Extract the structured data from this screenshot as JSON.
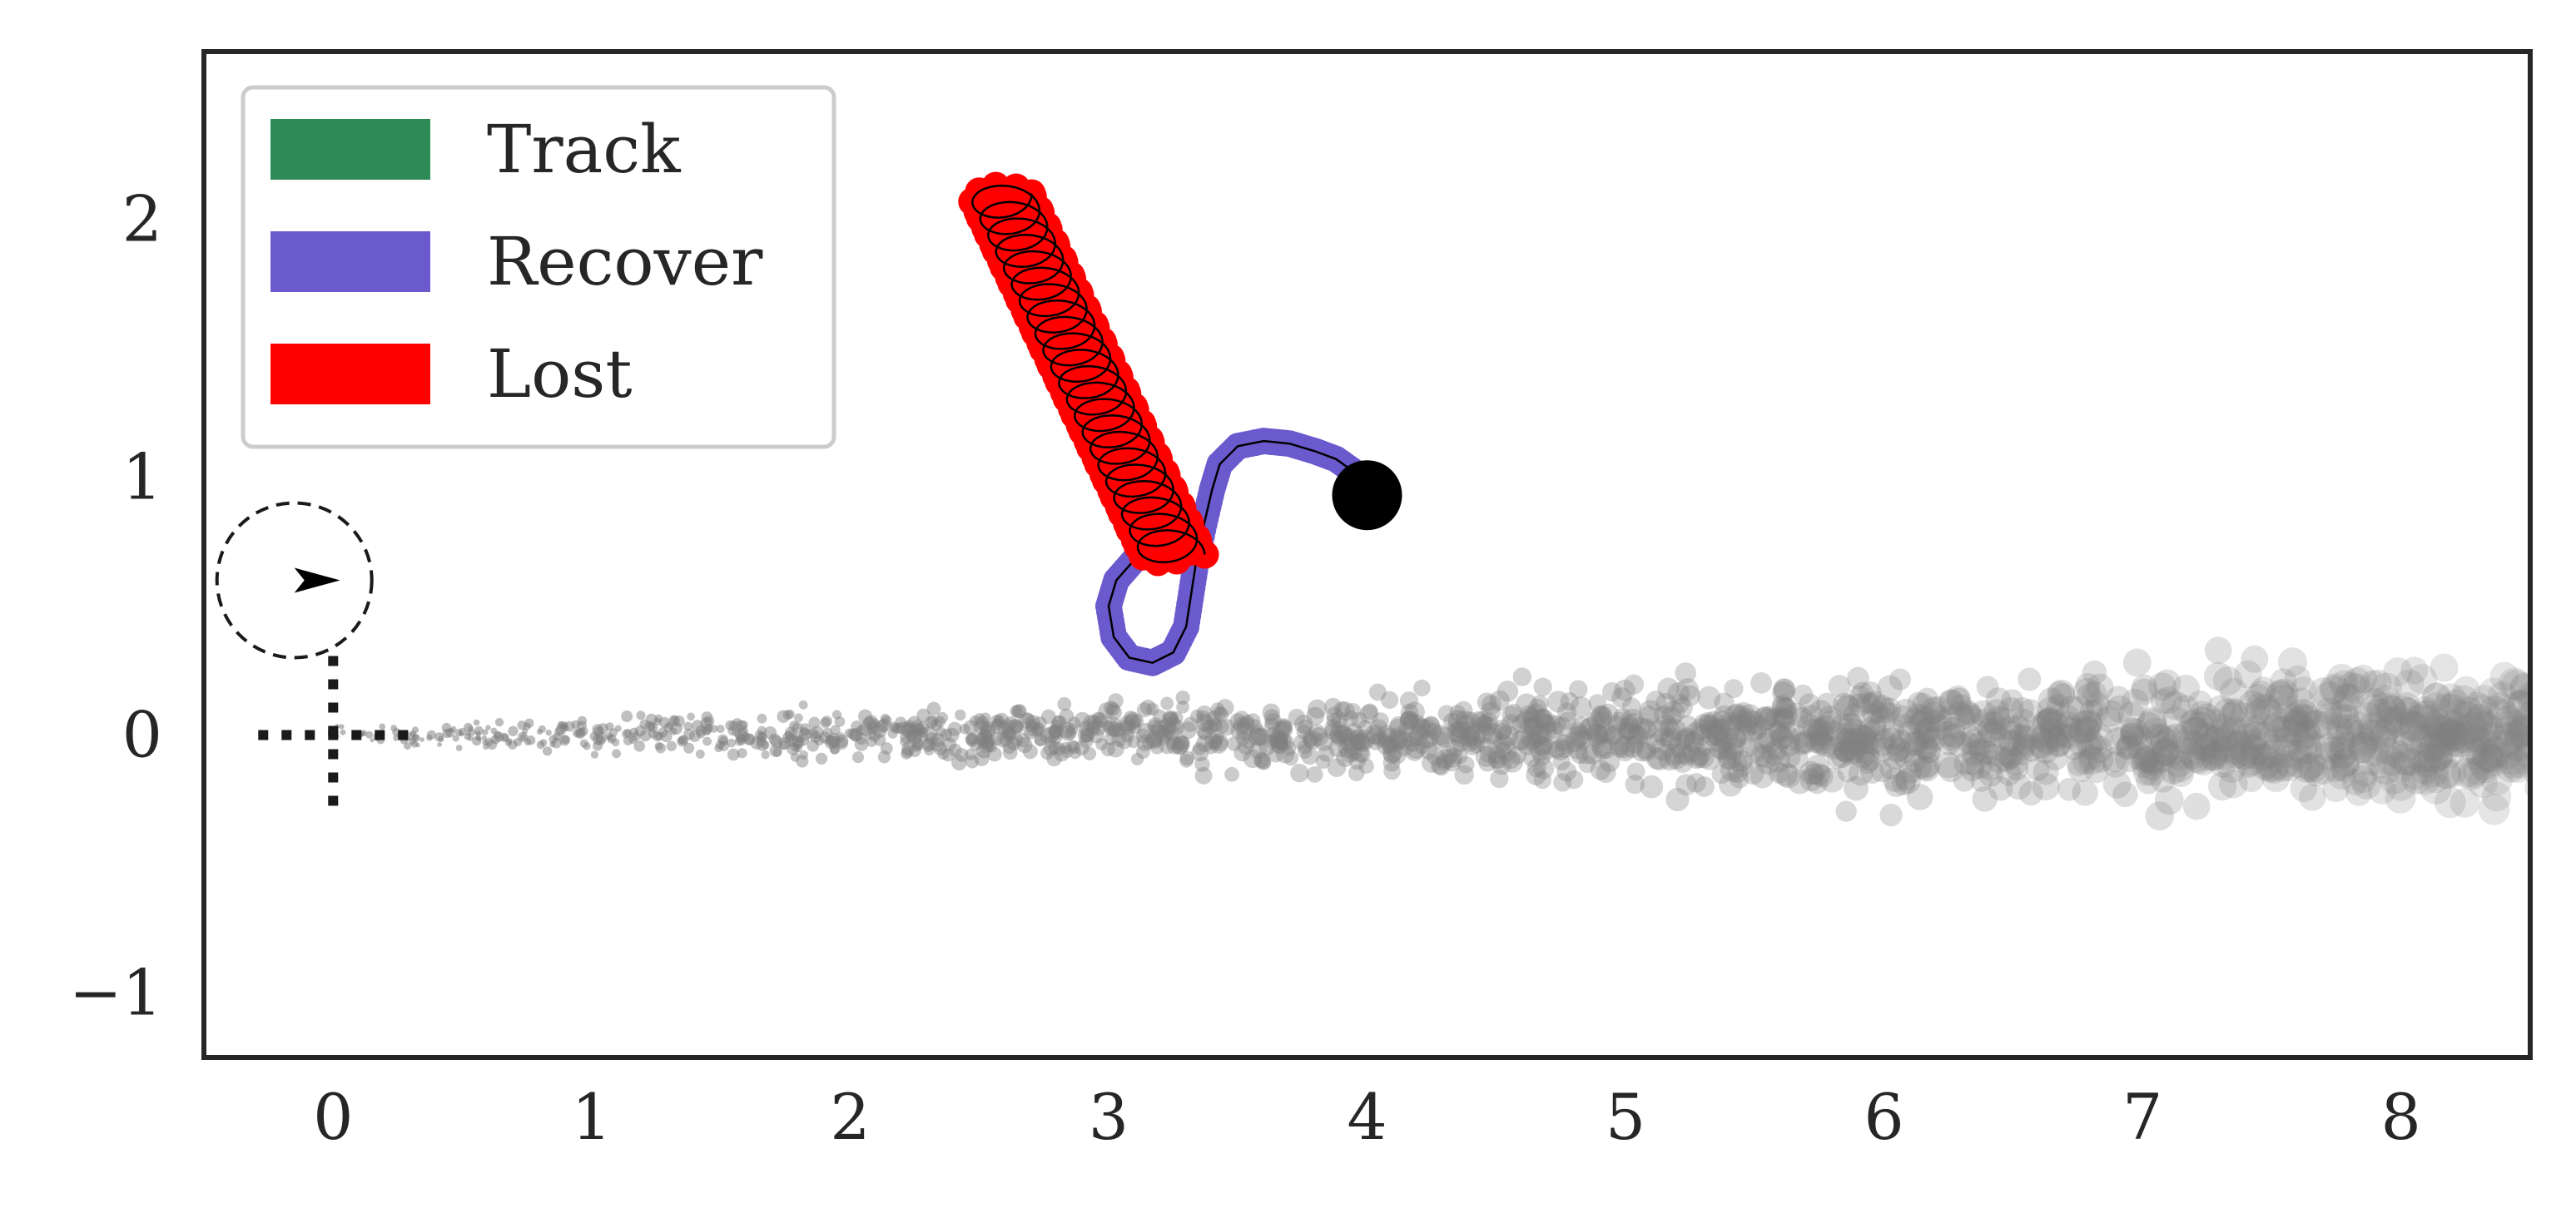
{
  "chart_data": {
    "type": "scatter",
    "title": "",
    "xlabel": "",
    "ylabel": "",
    "xlim": [
      -0.5,
      8.5
    ],
    "ylim": [
      -1.25,
      2.65
    ],
    "grid": false,
    "x_ticks": [
      0,
      1,
      2,
      3,
      4,
      5,
      6,
      7,
      8
    ],
    "y_ticks": [
      -1,
      0,
      1,
      2
    ],
    "x_tick_labels": [
      "0",
      "1",
      "2",
      "3",
      "4",
      "5",
      "6",
      "7",
      "8"
    ],
    "y_tick_labels": [
      "−1",
      "0",
      "1",
      "2"
    ],
    "legend": {
      "placement": "upper-left",
      "entries": [
        {
          "label": "Track",
          "color": "#2e8b57"
        },
        {
          "label": "Recover",
          "color": "#6a5acd"
        },
        {
          "label": "Lost",
          "color": "#ff0000"
        }
      ]
    },
    "colors": {
      "track": "#2e8b57",
      "recover": "#6a5acd",
      "lost": "#ff0000",
      "target": "#000000",
      "particles": "#808080",
      "frame": "#262626"
    },
    "target_point": {
      "x": 4.0,
      "y": 0.93
    },
    "sensor_origin": {
      "x": 0.0,
      "y": 0.0
    },
    "sensor_fov_circle": {
      "center_x": -0.15,
      "center_y": 0.6,
      "radius": 0.3
    },
    "recover_path": [
      [
        4.0,
        0.93
      ],
      [
        3.95,
        1.02
      ],
      [
        3.88,
        1.07
      ],
      [
        3.8,
        1.1
      ],
      [
        3.7,
        1.13
      ],
      [
        3.6,
        1.14
      ],
      [
        3.5,
        1.12
      ],
      [
        3.43,
        1.05
      ],
      [
        3.4,
        0.95
      ],
      [
        3.37,
        0.82
      ],
      [
        3.34,
        0.68
      ],
      [
        3.32,
        0.55
      ],
      [
        3.3,
        0.42
      ],
      [
        3.25,
        0.32
      ],
      [
        3.17,
        0.28
      ],
      [
        3.08,
        0.3
      ],
      [
        3.02,
        0.38
      ],
      [
        3.0,
        0.5
      ],
      [
        3.03,
        0.6
      ],
      [
        3.1,
        0.68
      ]
    ],
    "lost_segment": {
      "start": [
        2.58,
        2.1
      ],
      "end": [
        3.25,
        0.7
      ],
      "loops": 22
    },
    "particle_cloud": {
      "x_range": [
        0.0,
        8.5
      ],
      "mean_y": 0.0,
      "spread_start": 0.03,
      "spread_end": 0.22
    }
  }
}
